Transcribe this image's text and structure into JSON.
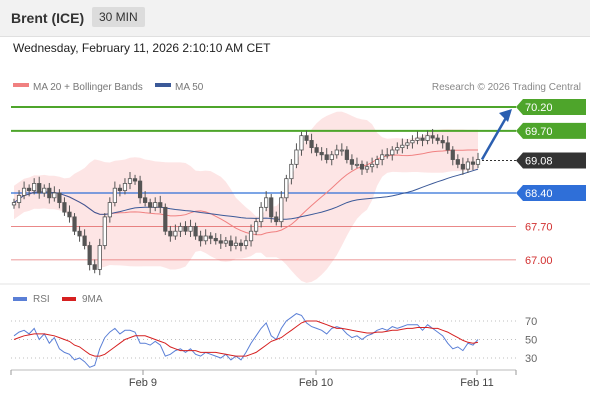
{
  "header": {
    "instrument": "Brent (ICE)",
    "timeframe": "30 MIN"
  },
  "datetime": "Wednesday, February 11, 2026 2:10:10 AM CET",
  "legend": {
    "ma20": "MA 20 + Bollinger Bands",
    "ma50": "MA 50",
    "credit": "Research © 2026 Trading Central",
    "rsi": "RSI",
    "rsi_ma": "9MA"
  },
  "colors": {
    "resistance": "#4ea52b",
    "support": "#2f6fd8",
    "level_red": "#e05555",
    "band_fill": "#fde0e0",
    "ma20": "#f08080",
    "ma50": "#3b5998",
    "candle": "#555555",
    "rsi": "#5a7fd6",
    "rsi_ma": "#d62020",
    "arrow": "#2b5fb0"
  },
  "chart_data": [
    {
      "type": "candlestick",
      "y_range": [
        66.6,
        70.5
      ],
      "levels": [
        {
          "value": 70.2,
          "label": "70.20",
          "style": "resistance-box"
        },
        {
          "value": 69.7,
          "label": "69.70",
          "style": "resistance-box"
        },
        {
          "value": 69.08,
          "label": "69.08",
          "style": "last-price"
        },
        {
          "value": 68.4,
          "label": "68.40",
          "style": "support-box"
        },
        {
          "value": 67.7,
          "label": "67.70",
          "style": "red-text"
        },
        {
          "value": 67.0,
          "label": "67.00",
          "style": "red-text"
        }
      ],
      "x_labels": [
        "Feb 9",
        "Feb 10",
        "Feb 11"
      ],
      "closes": [
        68.2,
        68.35,
        68.5,
        68.45,
        68.6,
        68.4,
        68.5,
        68.3,
        68.4,
        68.2,
        68.0,
        67.9,
        67.6,
        67.5,
        67.3,
        66.9,
        66.8,
        67.3,
        67.9,
        68.2,
        68.5,
        68.45,
        68.6,
        68.7,
        68.65,
        68.3,
        68.2,
        68.1,
        68.2,
        68.1,
        67.6,
        67.5,
        67.6,
        67.7,
        67.6,
        67.7,
        67.5,
        67.4,
        67.5,
        67.45,
        67.4,
        67.35,
        67.4,
        67.3,
        67.35,
        67.3,
        67.4,
        67.6,
        67.8,
        68.1,
        68.3,
        67.9,
        67.8,
        68.3,
        68.7,
        69.0,
        69.3,
        69.6,
        69.5,
        69.35,
        69.25,
        69.2,
        69.1,
        69.2,
        69.3,
        69.3,
        69.1,
        69.0,
        69.0,
        68.9,
        68.95,
        69.0,
        69.1,
        69.2,
        69.2,
        69.3,
        69.35,
        69.4,
        69.45,
        69.5,
        69.55,
        69.5,
        69.6,
        69.55,
        69.5,
        69.45,
        69.3,
        69.1,
        69.0,
        68.9,
        69.05,
        69.0,
        69.1
      ],
      "note": "ma20 and ma50 are computed by the page from the closes; the projection arrow points toward 70.20"
    },
    {
      "type": "line",
      "y_ticks": [
        70,
        50,
        30
      ],
      "y_range": [
        20,
        80
      ],
      "series": [
        {
          "name": "RSI",
          "values": [
            54,
            58,
            60,
            56,
            62,
            50,
            56,
            46,
            52,
            40,
            36,
            34,
            28,
            30,
            26,
            20,
            22,
            40,
            52,
            58,
            62,
            56,
            60,
            60,
            58,
            46,
            46,
            44,
            48,
            44,
            32,
            34,
            38,
            40,
            36,
            40,
            34,
            32,
            36,
            34,
            32,
            30,
            34,
            28,
            32,
            28,
            36,
            46,
            54,
            62,
            68,
            54,
            50,
            62,
            70,
            74,
            78,
            76,
            68,
            64,
            62,
            60,
            56,
            62,
            64,
            62,
            56,
            52,
            54,
            50,
            54,
            56,
            60,
            62,
            60,
            64,
            62,
            64,
            66,
            66,
            66,
            60,
            66,
            62,
            58,
            54,
            46,
            40,
            42,
            38,
            46,
            44,
            50
          ]
        },
        {
          "name": "9MA",
          "values": [
            50,
            52,
            54,
            55,
            56,
            56,
            56,
            55,
            54,
            52,
            50,
            48,
            44,
            42,
            38,
            34,
            32,
            32,
            34,
            38,
            42,
            46,
            50,
            52,
            54,
            54,
            54,
            52,
            50,
            48,
            46,
            42,
            40,
            38,
            38,
            38,
            38,
            36,
            36,
            36,
            36,
            35,
            34,
            33,
            32,
            32,
            32,
            34,
            36,
            40,
            44,
            48,
            50,
            52,
            56,
            60,
            64,
            68,
            70,
            70,
            70,
            68,
            66,
            64,
            62,
            62,
            61,
            60,
            59,
            58,
            57,
            57,
            58,
            58,
            59,
            60,
            60,
            61,
            62,
            62,
            63,
            63,
            63,
            62,
            62,
            60,
            58,
            55,
            52,
            49,
            47,
            46,
            47
          ]
        }
      ]
    }
  ]
}
